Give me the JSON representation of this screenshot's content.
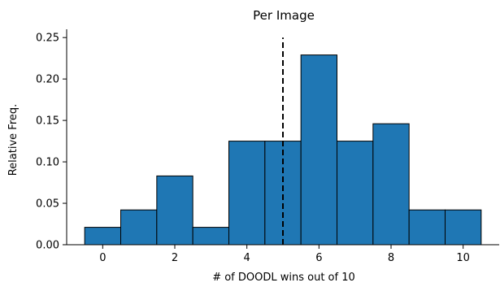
{
  "chart_data": {
    "type": "bar",
    "title": "Per Image",
    "xlabel": "# of DOODL wins out of 10",
    "ylabel": "Relative Freq.",
    "categories": [
      0,
      1,
      2,
      3,
      4,
      5,
      6,
      7,
      8,
      9,
      10
    ],
    "values": [
      0.021,
      0.042,
      0.083,
      0.021,
      0.125,
      0.125,
      0.229,
      0.125,
      0.146,
      0.042,
      0.042
    ],
    "xlim": [
      -1,
      11
    ],
    "ylim": [
      0,
      0.26
    ],
    "xticks": [
      0,
      2,
      4,
      6,
      8,
      10
    ],
    "yticks": [
      0.0,
      0.05,
      0.1,
      0.15,
      0.2,
      0.25
    ],
    "ytick_labels": [
      "0.00",
      "0.05",
      "0.10",
      "0.15",
      "0.20",
      "0.25"
    ],
    "reference_line": {
      "x": 5,
      "style": "dashed",
      "y_max": 0.25
    },
    "bar_color": "#1f77b4",
    "edge_color": "#000000",
    "grid": false,
    "legend": "none"
  }
}
